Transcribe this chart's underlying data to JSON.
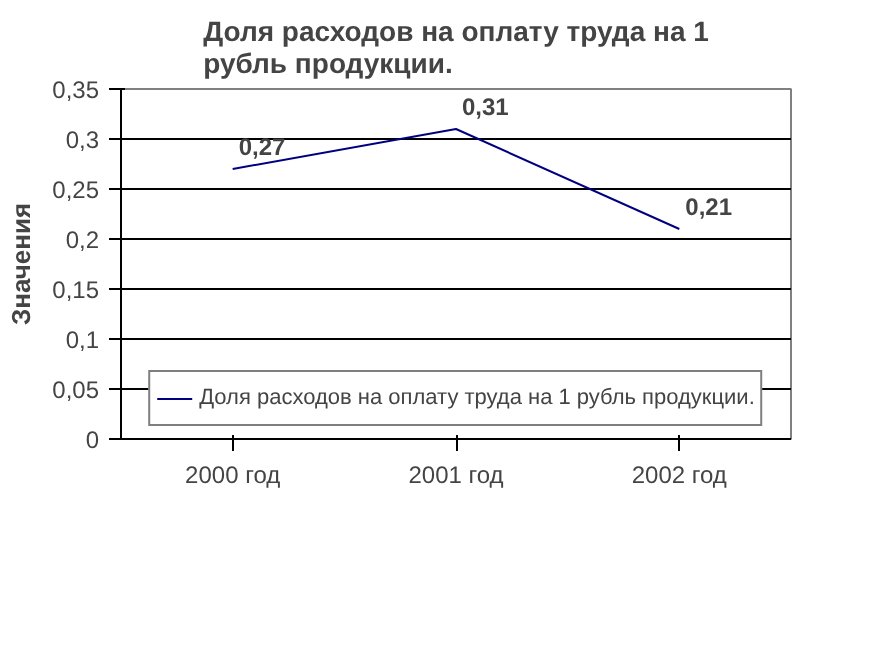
{
  "chart_data": {
    "type": "line",
    "title": "Доля расходов на оплату труда на 1 рубль продукции.",
    "ylabel": "Значения",
    "categories": [
      "2000 год",
      "2001 год",
      "2002 год"
    ],
    "series": [
      {
        "name": "Доля расходов на оплату труда на 1 рубль продукции.",
        "color": "#000080",
        "values": [
          0.27,
          0.31,
          0.21
        ],
        "value_labels": [
          "0,27",
          "0,31",
          "0,21"
        ]
      }
    ],
    "ylim": [
      0,
      0.35
    ],
    "yticks": [
      0,
      {
        "value": 0.05,
        "label": "0,05"
      },
      {
        "value": 0.1,
        "label": "0,1"
      },
      {
        "value": 0.15,
        "label": "0,15"
      },
      {
        "value": 0.2,
        "label": "0,2"
      },
      {
        "value": 0.25,
        "label": "0,25"
      },
      {
        "value": 0.3,
        "label": "0,3"
      },
      {
        "value": 0.35,
        "label": "0,35"
      }
    ],
    "grid": "y",
    "legend": "bottom",
    "marker": "none",
    "line_style": "solid"
  }
}
